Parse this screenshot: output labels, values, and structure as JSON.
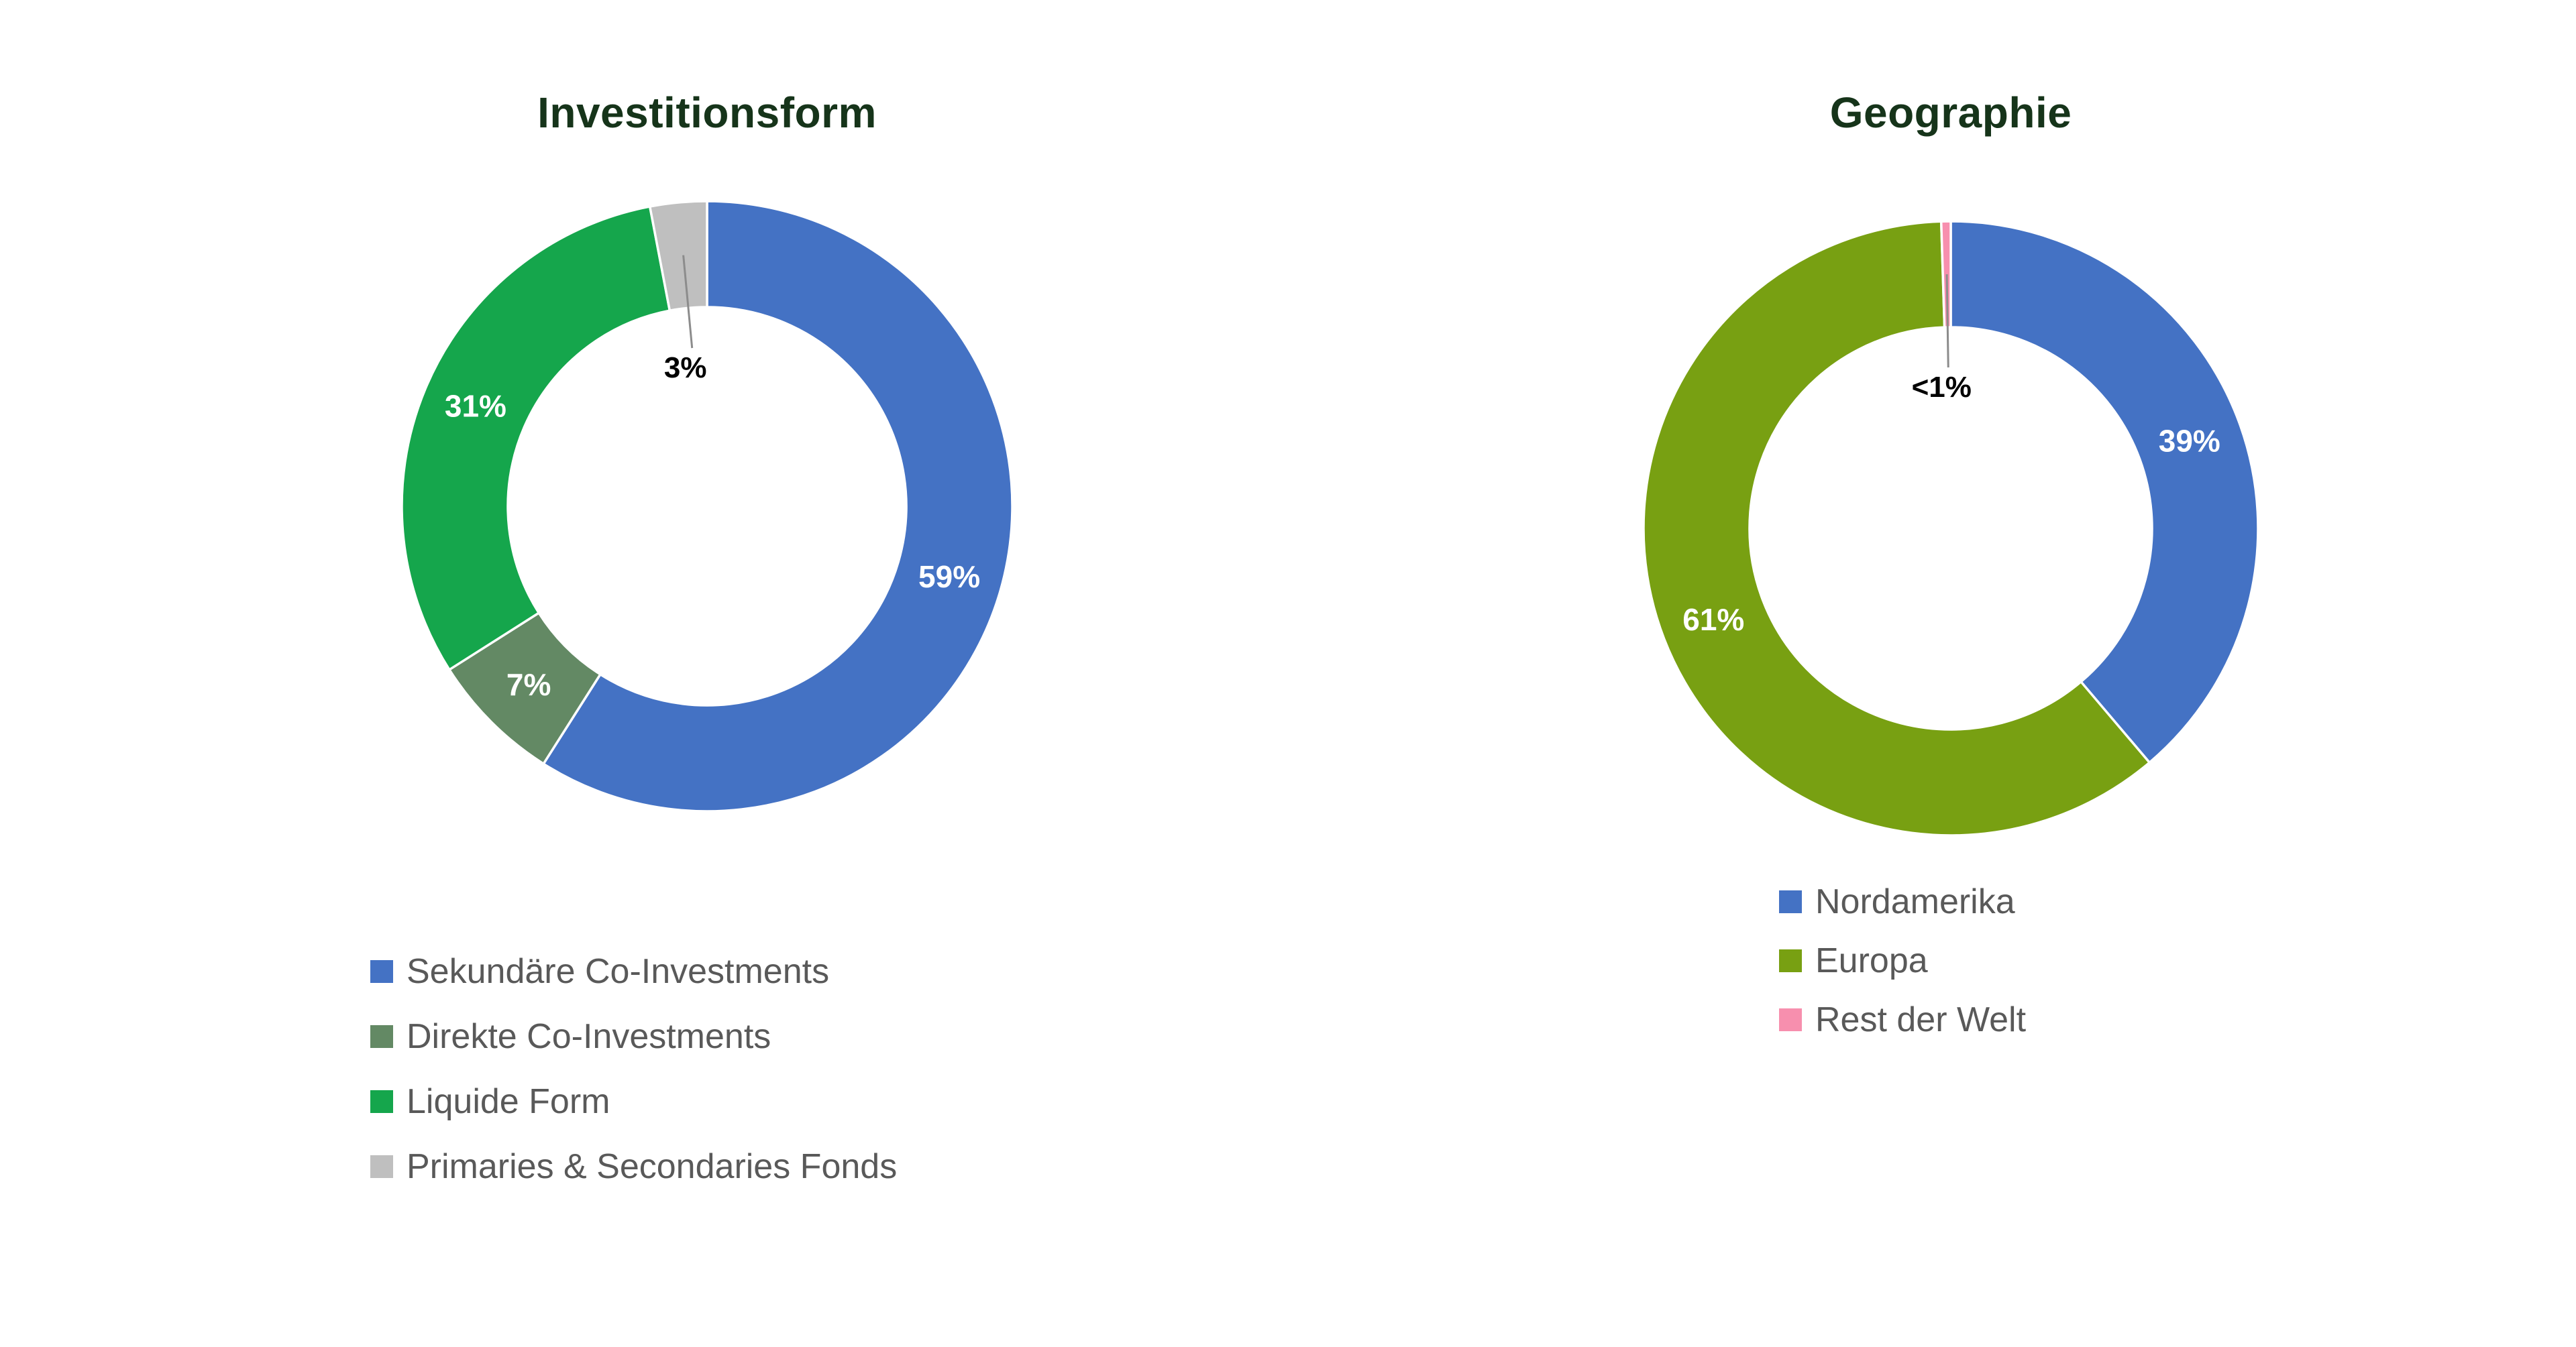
{
  "page": {
    "background": "#ffffff"
  },
  "styles": {
    "title_color": "#16341a",
    "legend_text_color": "#595959",
    "value_label_color_inside": "#ffffff",
    "value_label_color_callout": "#000000",
    "leader_line_color": "#8c8c8c",
    "segment_border_color": "#ffffff"
  },
  "chart_data": [
    {
      "type": "pie",
      "subtype": "donut",
      "title": "Investitionsform",
      "start_angle_deg": 0,
      "clockwise": true,
      "hole_ratio": 0.65,
      "legend_position": "bottom",
      "grid": false,
      "segments": [
        {
          "label": "Sekundäre Co-Investments",
          "value": 59,
          "display": "59%",
          "color": "#4472c4",
          "callout": false
        },
        {
          "label": "Direkte Co-Investments",
          "value": 7,
          "display": "7%",
          "color": "#638964",
          "callout": false
        },
        {
          "label": "Liquide Form",
          "value": 31,
          "display": "31%",
          "color": "#15a64c",
          "callout": false
        },
        {
          "label": "Primaries & Secondaries Fonds",
          "value": 3,
          "display": "3%",
          "color": "#bfbfbf",
          "callout": true
        }
      ]
    },
    {
      "type": "pie",
      "subtype": "donut",
      "title": "Geographie",
      "start_angle_deg": 0,
      "clockwise": true,
      "hole_ratio": 0.65,
      "legend_position": "bottom",
      "grid": false,
      "segments": [
        {
          "label": "Nordamerika",
          "value": 39,
          "display": "39%",
          "color": "#4472c4",
          "callout": false
        },
        {
          "label": "Europa",
          "value": 61,
          "display": "61%",
          "color": "#78a012",
          "callout": false
        },
        {
          "label": "Rest der Welt",
          "value": 0.5,
          "display": "<1%",
          "color": "#f78fae",
          "callout": true
        }
      ]
    }
  ]
}
